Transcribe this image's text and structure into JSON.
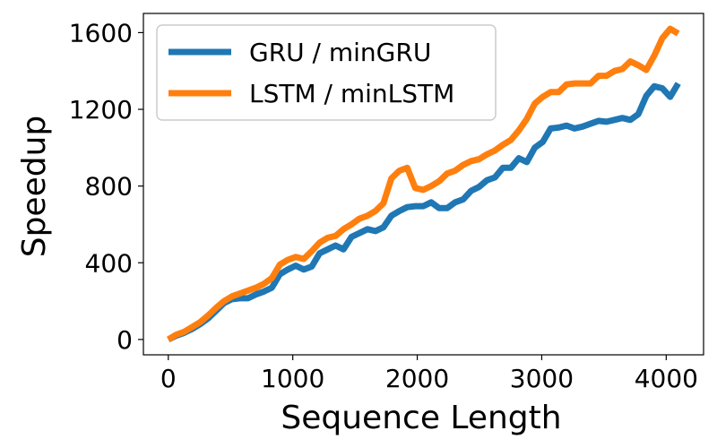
{
  "chart_data": {
    "type": "line",
    "title": "",
    "xlabel": "Sequence Length",
    "ylabel": "Speedup",
    "xlim": [
      -200,
      4300
    ],
    "ylim": [
      -80,
      1700
    ],
    "xticks": [
      0,
      1000,
      2000,
      3000,
      4000
    ],
    "yticks": [
      0,
      400,
      800,
      1200,
      1600
    ],
    "xtick_labels": [
      "0",
      "1000",
      "2000",
      "3000",
      "4000"
    ],
    "ytick_labels": [
      "0",
      "400",
      "800",
      "1200",
      "1600"
    ],
    "grid": false,
    "legend_position": "top-left",
    "colors": {
      "gru": "#1f77b4",
      "lstm": "#ff7f0e",
      "axes": "#000000",
      "legend_border": "#cccccc",
      "background": "#ffffff"
    },
    "x": [
      0,
      64,
      128,
      192,
      256,
      320,
      384,
      448,
      512,
      576,
      640,
      704,
      768,
      832,
      896,
      960,
      1024,
      1088,
      1152,
      1216,
      1280,
      1344,
      1408,
      1472,
      1536,
      1600,
      1664,
      1728,
      1792,
      1856,
      1920,
      1984,
      2048,
      2112,
      2176,
      2240,
      2304,
      2368,
      2432,
      2496,
      2560,
      2624,
      2688,
      2752,
      2816,
      2880,
      2944,
      3008,
      3072,
      3136,
      3200,
      3264,
      3328,
      3392,
      3456,
      3520,
      3584,
      3648,
      3712,
      3776,
      3840,
      3904,
      3968,
      4032,
      4096
    ],
    "series": [
      {
        "name": "GRU / minGRU",
        "color": "#1f77b4",
        "values": [
          0,
          20,
          35,
          55,
          80,
          110,
          150,
          190,
          210,
          215,
          215,
          235,
          250,
          270,
          340,
          365,
          385,
          365,
          380,
          450,
          470,
          490,
          470,
          535,
          555,
          575,
          565,
          585,
          645,
          670,
          690,
          695,
          695,
          715,
          685,
          685,
          715,
          730,
          775,
          795,
          830,
          845,
          895,
          895,
          945,
          925,
          1000,
          1030,
          1100,
          1105,
          1115,
          1100,
          1110,
          1125,
          1140,
          1135,
          1145,
          1155,
          1145,
          1175,
          1270,
          1320,
          1310,
          1265,
          1335
        ]
      },
      {
        "name": "LSTM / minLSTM",
        "color": "#ff7f0e",
        "values": [
          0,
          25,
          40,
          65,
          90,
          125,
          165,
          200,
          225,
          240,
          255,
          270,
          290,
          320,
          390,
          415,
          430,
          420,
          460,
          505,
          530,
          540,
          575,
          600,
          630,
          645,
          670,
          710,
          840,
          880,
          895,
          790,
          780,
          800,
          825,
          865,
          880,
          910,
          930,
          940,
          965,
          985,
          1015,
          1040,
          1090,
          1150,
          1230,
          1265,
          1290,
          1290,
          1330,
          1335,
          1335,
          1335,
          1375,
          1375,
          1400,
          1410,
          1450,
          1430,
          1405,
          1480,
          1570,
          1620,
          1595
        ]
      }
    ]
  }
}
